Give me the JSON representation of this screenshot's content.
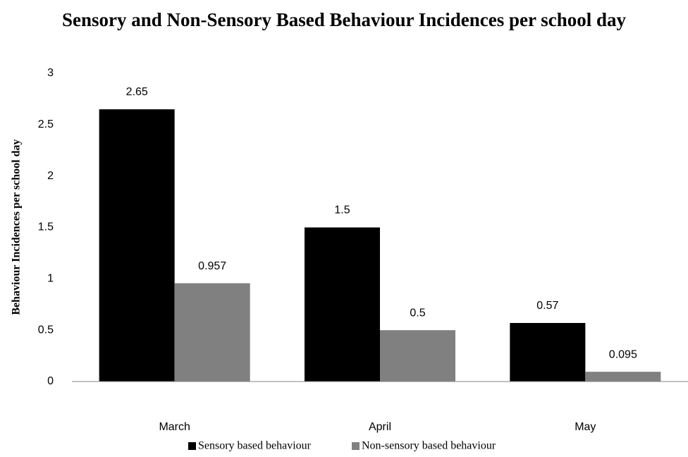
{
  "chart_data": {
    "type": "bar",
    "title": "Sensory and Non-Sensory Based Behaviour Incidences per school day",
    "y_label": "Behaviour Incidences per school day",
    "categories": [
      "March",
      "April",
      "May"
    ],
    "series": [
      {
        "name": "Sensory based behaviour",
        "color": "#000000",
        "values": [
          2.65,
          1.5,
          0.57
        ]
      },
      {
        "name": "Non-sensory based behaviour",
        "color": "#808080",
        "values": [
          0.957,
          0.5,
          0.095
        ]
      }
    ],
    "ylim": [
      0,
      3
    ],
    "yticks": [
      0,
      0.5,
      1,
      1.5,
      2,
      2.5,
      3
    ],
    "grid": false,
    "legend": "bottom"
  }
}
